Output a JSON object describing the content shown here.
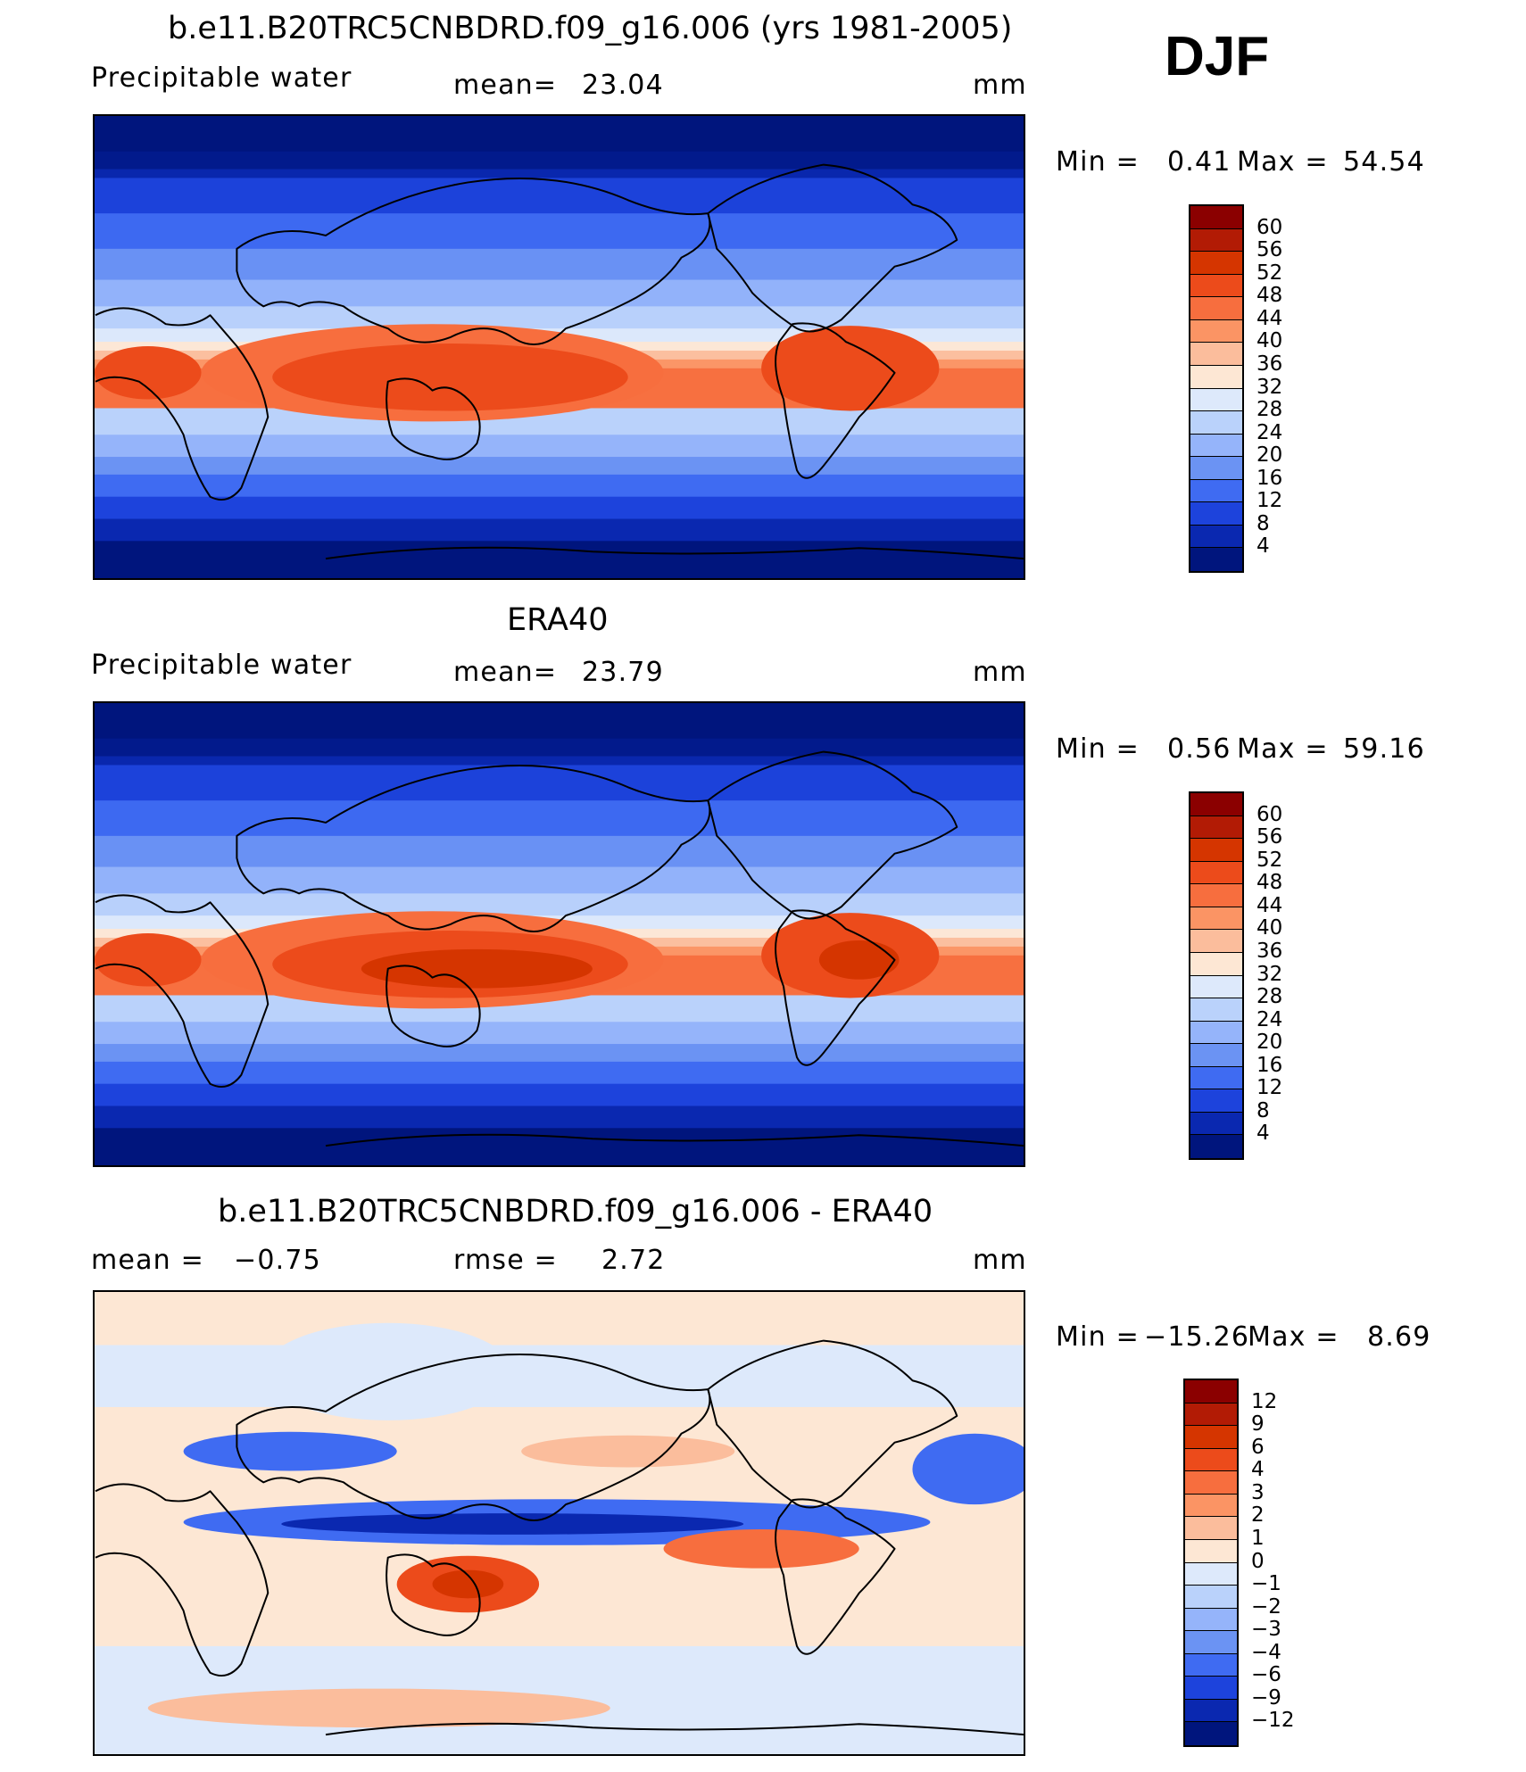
{
  "season": "DJF",
  "panels": [
    {
      "title": "b.e11.B20TRC5CNBDRD.f09_g16.006 (yrs 1981-2005)",
      "variable": "Precipitable  water",
      "stat1_label": "mean=",
      "stat1_value": "23.04",
      "stat2_label": "",
      "stat2_value": "",
      "units": "mm",
      "min_label": "Min  =",
      "min_value": "0.41",
      "max_label": "Max  =",
      "max_value": "54.54",
      "colorbar_ticks": [
        "60",
        "56",
        "52",
        "48",
        "44",
        "40",
        "36",
        "32",
        "28",
        "24",
        "20",
        "16",
        "12",
        "8",
        "4"
      ],
      "colorbar_colors": [
        "#8b0000",
        "#b21b05",
        "#d53500",
        "#ec4b1b",
        "#f76e3e",
        "#fb9464",
        "#fbbd9c",
        "#fde7d4",
        "#dde9fb",
        "#bad2fb",
        "#95b4fa",
        "#6b93f3",
        "#3f6bf2",
        "#1d43dc",
        "#0a28b0",
        "#00157d"
      ]
    },
    {
      "title": "ERA40",
      "variable": "Precipitable  water",
      "stat1_label": "mean=",
      "stat1_value": "23.79",
      "stat2_label": "",
      "stat2_value": "",
      "units": "mm",
      "min_label": "Min  =",
      "min_value": "0.56",
      "max_label": "Max  =",
      "max_value": "59.16",
      "colorbar_ticks": [
        "60",
        "56",
        "52",
        "48",
        "44",
        "40",
        "36",
        "32",
        "28",
        "24",
        "20",
        "16",
        "12",
        "8",
        "4"
      ],
      "colorbar_colors": [
        "#8b0000",
        "#b21b05",
        "#d53500",
        "#ec4b1b",
        "#f76e3e",
        "#fb9464",
        "#fbbd9c",
        "#fde7d4",
        "#dde9fb",
        "#bad2fb",
        "#95b4fa",
        "#6b93f3",
        "#3f6bf2",
        "#1d43dc",
        "#0a28b0",
        "#00157d"
      ]
    },
    {
      "title": "b.e11.B20TRC5CNBDRD.f09_g16.006 - ERA40",
      "variable": "",
      "stat1_label": "mean  =",
      "stat1_value": "−0.75",
      "stat2_label": "rmse  =",
      "stat2_value": "2.72",
      "units": "mm",
      "min_label": "Min  =",
      "min_value": "−15.26",
      "max_label": "Max  =",
      "max_value": "8.69",
      "colorbar_ticks": [
        "12",
        "9",
        "6",
        "4",
        "3",
        "2",
        "1",
        "0",
        "−1",
        "−2",
        "−3",
        "−4",
        "−6",
        "−9",
        "−12"
      ],
      "colorbar_colors": [
        "#8b0000",
        "#b21b05",
        "#d53500",
        "#ec4b1b",
        "#f76e3e",
        "#fb9464",
        "#fbbd9c",
        "#fde7d4",
        "#dde9fb",
        "#bad2fb",
        "#95b4fa",
        "#6b93f3",
        "#3f6bf2",
        "#1d43dc",
        "#0a28b0",
        "#00157d"
      ]
    }
  ]
}
